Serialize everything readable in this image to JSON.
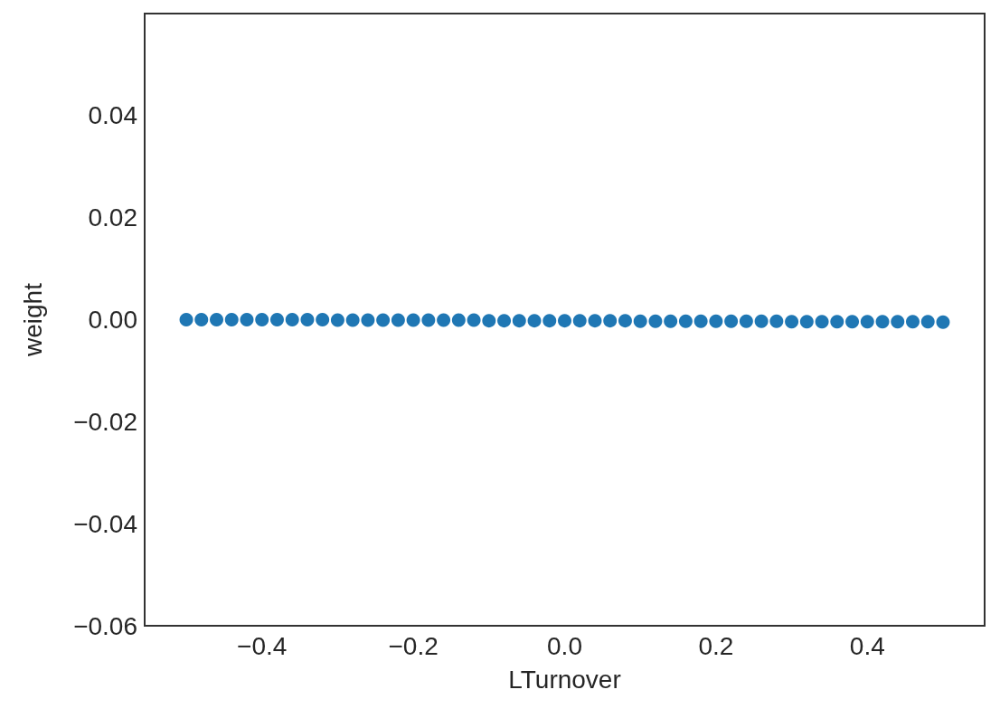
{
  "chart_data": {
    "type": "scatter",
    "xlabel": "LTurnover",
    "ylabel": "weight",
    "x": [
      -0.5,
      -0.48,
      -0.46,
      -0.44,
      -0.42,
      -0.4,
      -0.38,
      -0.36,
      -0.34,
      -0.32,
      -0.3,
      -0.28,
      -0.26,
      -0.24,
      -0.22,
      -0.2,
      -0.18,
      -0.16,
      -0.14,
      -0.12,
      -0.1,
      -0.08,
      -0.06,
      -0.04,
      -0.02,
      0,
      0.02,
      0.04,
      0.06,
      0.08,
      0.1,
      0.12,
      0.14,
      0.16,
      0.18,
      0.2,
      0.22,
      0.24,
      0.26,
      0.28,
      0.3,
      0.32,
      0.34,
      0.36,
      0.38,
      0.4,
      0.42,
      0.44,
      0.46,
      0.48,
      0.5
    ],
    "series": [
      {
        "color": "#1f77b4",
        "values": [
          0,
          0,
          0,
          0,
          0,
          0,
          0,
          0,
          0,
          0,
          -0.0001,
          -0.0001,
          -0.0001,
          -0.0001,
          -0.0001,
          -0.0001,
          -0.0001,
          -0.0001,
          -0.0001,
          -0.0001,
          -0.0002,
          -0.0002,
          -0.0002,
          -0.0002,
          -0.0002,
          -0.0002,
          -0.0002,
          -0.0002,
          -0.0002,
          -0.0002,
          -0.0003,
          -0.0003,
          -0.0003,
          -0.0003,
          -0.0003,
          -0.0003,
          -0.0003,
          -0.0003,
          -0.0003,
          -0.0003,
          -0.0004,
          -0.0004,
          -0.0004,
          -0.0004,
          -0.0004,
          -0.0004,
          -0.0004,
          -0.0004,
          -0.0004,
          -0.0004,
          -0.0005
        ]
      }
    ],
    "xlim": [
      -0.555,
      0.555
    ],
    "xticks": [
      {
        "value": -0.4,
        "label": "−0.4"
      },
      {
        "value": -0.2,
        "label": "−0.2"
      },
      {
        "value": 0,
        "label": "0.0"
      },
      {
        "value": 0.2,
        "label": "0.2"
      },
      {
        "value": 0.4,
        "label": "0.4"
      }
    ],
    "ylim": [
      -0.06,
      0.06
    ],
    "yticks": [
      {
        "value": -0.06,
        "label": "−0.06"
      },
      {
        "value": -0.04,
        "label": "−0.04"
      },
      {
        "value": -0.02,
        "label": "−0.02"
      },
      {
        "value": 0,
        "label": "0.00"
      },
      {
        "value": 0.02,
        "label": "0.02"
      },
      {
        "value": 0.04,
        "label": "0.04"
      }
    ],
    "grid": false,
    "marker": "circle"
  }
}
